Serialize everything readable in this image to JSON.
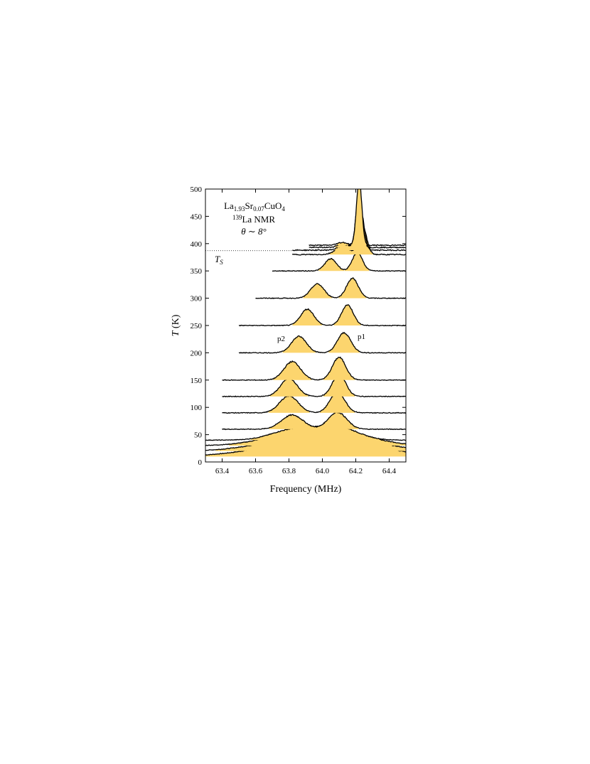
{
  "chart_data": {
    "type": "line",
    "title_lines": [
      "La₁.₉₃Sr₀.₀₇CuO₄",
      "139La NMR",
      "θ ∼ 8°"
    ],
    "title": {
      "compound": {
        "a": "La",
        "s1": "1.93",
        "b": "Sr",
        "s2": "0.07",
        "c": "CuO",
        "s3": "4"
      },
      "nucleus": {
        "sup": "139",
        "text": "La NMR"
      },
      "angle": "θ ∼ 8°"
    },
    "xlabel": "Frequency (MHz)",
    "ylabel": {
      "italic": "T",
      "rest": " (K)"
    },
    "xlim": [
      63.3,
      64.5
    ],
    "ylim": [
      0,
      500
    ],
    "xticks": [
      "63.4",
      "63.6",
      "63.8",
      "64.0",
      "64.2",
      "64.4"
    ],
    "yticks": [
      "0",
      "50",
      "100",
      "150",
      "200",
      "250",
      "300",
      "350",
      "400",
      "450",
      "500"
    ],
    "annotations": {
      "ts_label": "T",
      "ts_sub": "S",
      "ts_value": 387,
      "p1": "p1",
      "p2": "p2"
    },
    "fill_color": "#fcd56e",
    "line_color": "#000000",
    "series": [
      {
        "T": 10,
        "xmin": 63.3,
        "p1": 64.1,
        "p2": 63.85,
        "w1": 0.3,
        "w2": 0.3,
        "a1": 14,
        "a2": 10,
        "noise": 0.4
      },
      {
        "T": 20,
        "xmin": 63.3,
        "p1": 64.1,
        "p2": 63.85,
        "w1": 0.25,
        "w2": 0.25,
        "a1": 16,
        "a2": 12,
        "noise": 0.4
      },
      {
        "T": 30,
        "xmin": 63.3,
        "p1": 64.1,
        "p2": 63.84,
        "w1": 0.2,
        "w2": 0.2,
        "a1": 17,
        "a2": 14,
        "noise": 0.4
      },
      {
        "T": 40,
        "xmin": 63.3,
        "p1": 64.09,
        "p2": 63.83,
        "w1": 0.12,
        "w2": 0.13,
        "a1": 18,
        "a2": 15,
        "noise": 0.4
      },
      {
        "T": 60,
        "xmin": 63.4,
        "p1": 64.09,
        "p2": 63.82,
        "w1": 0.055,
        "w2": 0.065,
        "a1": 24,
        "a2": 20,
        "noise": 0.5
      },
      {
        "T": 90,
        "xmin": 63.4,
        "p1": 64.09,
        "p2": 63.8,
        "w1": 0.045,
        "w2": 0.055,
        "a1": 29,
        "a2": 24,
        "noise": 0.5
      },
      {
        "T": 120,
        "xmin": 63.4,
        "p1": 64.1,
        "p2": 63.8,
        "w1": 0.04,
        "w2": 0.05,
        "a1": 31,
        "a2": 25,
        "noise": 0.5
      },
      {
        "T": 150,
        "xmin": 63.4,
        "p1": 64.1,
        "p2": 63.82,
        "w1": 0.04,
        "w2": 0.05,
        "a1": 32,
        "a2": 26,
        "noise": 0.5
      },
      {
        "T": 200,
        "xmin": 63.5,
        "p1": 64.13,
        "p2": 63.86,
        "w1": 0.04,
        "w2": 0.045,
        "a1": 28,
        "a2": 23,
        "noise": 0.5
      },
      {
        "T": 250,
        "xmin": 63.5,
        "p1": 64.15,
        "p2": 63.91,
        "w1": 0.035,
        "w2": 0.04,
        "a1": 29,
        "a2": 23,
        "noise": 0.5
      },
      {
        "T": 300,
        "xmin": 63.6,
        "p1": 64.18,
        "p2": 63.97,
        "w1": 0.035,
        "w2": 0.04,
        "a1": 28,
        "a2": 20,
        "noise": 0.5
      },
      {
        "T": 350,
        "xmin": 63.7,
        "p1": 64.21,
        "p2": 64.05,
        "w1": 0.03,
        "w2": 0.035,
        "a1": 26,
        "a2": 17,
        "noise": 0.5
      },
      {
        "T": 380,
        "xmin": 63.82,
        "p1": 64.24,
        "p2": 64.12,
        "w1": 0.025,
        "w2": 0.04,
        "a1": 40,
        "a2": 12,
        "noise": 0.7
      },
      {
        "T": 388,
        "xmin": 63.82,
        "p1": 64.23,
        "p2": 64.14,
        "w1": 0.02,
        "w2": 0.04,
        "a1": 55,
        "a2": 8,
        "noise": 0.7
      },
      {
        "T": 393,
        "xmin": 63.92,
        "p1": 64.22,
        "p2": 64.12,
        "w1": 0.018,
        "w2": 0.03,
        "a1": 80,
        "a2": 5,
        "noise": 0.7
      },
      {
        "T": 397,
        "xmin": 63.92,
        "p1": 64.22,
        "p2": 64.12,
        "w1": 0.016,
        "w2": 0.03,
        "a1": 94,
        "a2": 4,
        "noise": 0.7
      }
    ]
  }
}
